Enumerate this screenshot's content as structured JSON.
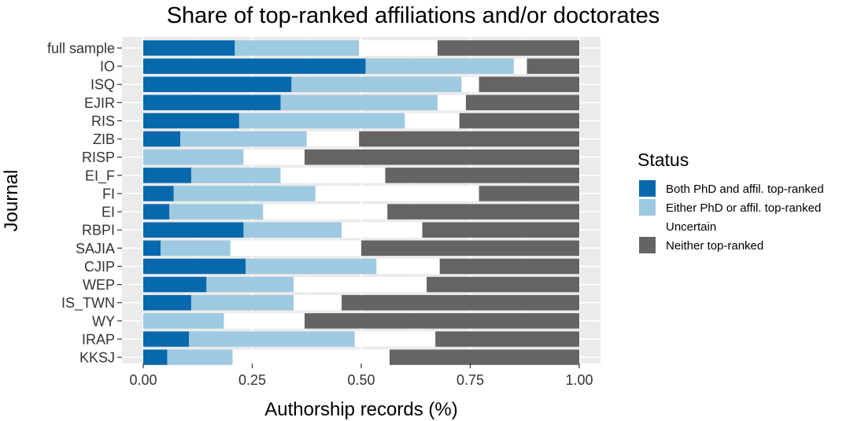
{
  "chart_data": {
    "type": "bar",
    "orientation": "horizontal",
    "stacked": true,
    "title": "Share of top-ranked affiliations and/or doctorates",
    "xlabel": "Authorship records (%)",
    "ylabel": "Journal",
    "xlim": [
      0,
      1
    ],
    "x_ticks": [
      "0.00",
      "0.25",
      "0.50",
      "0.75",
      "1.00"
    ],
    "x_tick_values": [
      0,
      0.25,
      0.5,
      0.75,
      1.0
    ],
    "grid": true,
    "legend_position": "right",
    "legend_title": "Status",
    "categories": [
      "full sample",
      "IO",
      "ISQ",
      "EJIR",
      "RIS",
      "ZIB",
      "RISP",
      "EI_F",
      "FI",
      "EI",
      "RBPI",
      "SAJIA",
      "CJIP",
      "WEP",
      "IS_TWN",
      "WY",
      "IRAP",
      "KKSJ"
    ],
    "series": [
      {
        "name": "Both PhD and affil. top-ranked",
        "color": "#0868AC",
        "values": [
          0.21,
          0.51,
          0.34,
          0.315,
          0.22,
          0.085,
          0.0,
          0.11,
          0.07,
          0.06,
          0.23,
          0.04,
          0.235,
          0.145,
          0.11,
          0.0,
          0.105,
          0.055
        ]
      },
      {
        "name": "Either PhD or affil. top-ranked",
        "color": "#9ECAE1",
        "values": [
          0.285,
          0.34,
          0.39,
          0.36,
          0.38,
          0.29,
          0.23,
          0.205,
          0.325,
          0.215,
          0.225,
          0.16,
          0.3,
          0.2,
          0.235,
          0.185,
          0.38,
          0.15
        ]
      },
      {
        "name": "Uncertain",
        "color": "#FFFFFF",
        "values": [
          0.18,
          0.03,
          0.04,
          0.065,
          0.125,
          0.12,
          0.14,
          0.24,
          0.375,
          0.285,
          0.185,
          0.3,
          0.145,
          0.305,
          0.11,
          0.185,
          0.185,
          0.36
        ]
      },
      {
        "name": "Neither top-ranked",
        "color": "#666363",
        "values": [
          0.325,
          0.12,
          0.23,
          0.26,
          0.275,
          0.505,
          0.63,
          0.445,
          0.23,
          0.44,
          0.36,
          0.5,
          0.32,
          0.35,
          0.545,
          0.63,
          0.33,
          0.435
        ]
      }
    ]
  }
}
